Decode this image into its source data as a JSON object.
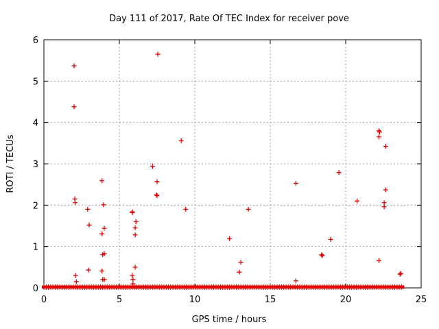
{
  "chart_data": {
    "type": "scatter",
    "title": "Day 111 of 2017, Rate Of TEC Index for receiver pove",
    "xlabel": "GPS time / hours",
    "ylabel": "ROTI / TECUs",
    "xlim": [
      0,
      25
    ],
    "ylim": [
      0,
      6
    ],
    "x_ticks": [
      "0",
      "5",
      "10",
      "15",
      "20",
      "25"
    ],
    "y_ticks": [
      "0",
      "1",
      "2",
      "3",
      "4",
      "5",
      "6"
    ],
    "grid": true,
    "legend": "none",
    "marker": "plus",
    "color": "#e00000",
    "baseline": {
      "x_start": 0.0,
      "x_end": 23.75,
      "y_values": [
        0.0,
        0.02,
        0.04
      ]
    },
    "series": [
      {
        "points": [
          [
            2.0,
            5.37
          ],
          [
            2.0,
            4.38
          ],
          [
            2.05,
            2.15
          ],
          [
            2.07,
            2.06
          ],
          [
            2.1,
            0.3
          ],
          [
            2.15,
            0.15
          ],
          [
            2.9,
            1.9
          ],
          [
            3.0,
            1.52
          ],
          [
            2.95,
            0.43
          ],
          [
            3.85,
            2.59
          ],
          [
            3.95,
            2.01
          ],
          [
            4.0,
            1.44
          ],
          [
            3.85,
            1.31
          ],
          [
            3.9,
            0.8
          ],
          [
            4.0,
            0.83
          ],
          [
            3.85,
            0.41
          ],
          [
            3.9,
            0.2
          ],
          [
            4.0,
            0.2
          ],
          [
            5.85,
            1.84
          ],
          [
            5.87,
            1.82
          ],
          [
            6.1,
            1.6
          ],
          [
            6.05,
            1.45
          ],
          [
            6.05,
            1.28
          ],
          [
            6.05,
            0.5
          ],
          [
            5.85,
            0.3
          ],
          [
            5.9,
            0.2
          ],
          [
            5.9,
            0.1
          ],
          [
            7.2,
            2.94
          ],
          [
            7.55,
            5.65
          ],
          [
            7.5,
            2.57
          ],
          [
            7.45,
            2.25
          ],
          [
            7.5,
            2.23
          ],
          [
            9.1,
            3.56
          ],
          [
            9.4,
            1.9
          ],
          [
            12.3,
            1.19
          ],
          [
            13.05,
            0.62
          ],
          [
            12.95,
            0.38
          ],
          [
            13.55,
            1.9
          ],
          [
            16.7,
            2.53
          ],
          [
            16.7,
            0.17
          ],
          [
            18.4,
            0.8
          ],
          [
            18.45,
            0.78
          ],
          [
            19.0,
            1.17
          ],
          [
            19.55,
            2.79
          ],
          [
            20.75,
            2.1
          ],
          [
            22.2,
            3.8
          ],
          [
            22.25,
            3.77
          ],
          [
            22.2,
            3.65
          ],
          [
            22.65,
            3.42
          ],
          [
            22.2,
            0.66
          ],
          [
            22.65,
            2.37
          ],
          [
            22.55,
            2.06
          ],
          [
            22.55,
            1.96
          ],
          [
            23.6,
            0.33
          ],
          [
            23.65,
            0.35
          ]
        ]
      }
    ]
  }
}
